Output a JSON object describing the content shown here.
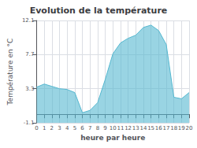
{
  "chart_data": {
    "type": "area",
    "title": "Evolution de la température",
    "x_label": "heure par heure",
    "y_label": "Température en °C",
    "x": [
      0,
      1,
      2,
      3,
      4,
      5,
      6,
      7,
      8,
      9,
      10,
      11,
      12,
      13,
      14,
      15,
      16,
      17,
      18,
      19,
      20
    ],
    "values": [
      3.5,
      3.9,
      3.6,
      3.3,
      3.2,
      2.8,
      0.2,
      0.5,
      1.5,
      4.5,
      7.8,
      9.2,
      9.8,
      10.2,
      11.2,
      11.5,
      10.8,
      9.0,
      2.2,
      2.0,
      2.8
    ],
    "color": "#55b8d0",
    "xlim": [
      0,
      20
    ],
    "xticks": [
      0,
      1,
      2,
      3,
      4,
      5,
      6,
      7,
      8,
      9,
      10,
      11,
      12,
      13,
      14,
      15,
      16,
      17,
      18,
      19,
      20
    ],
    "ylim": [
      -1.1,
      12.1
    ],
    "yticks": [
      -1.1,
      3.3,
      7.7,
      12.1
    ],
    "grid": true
  }
}
